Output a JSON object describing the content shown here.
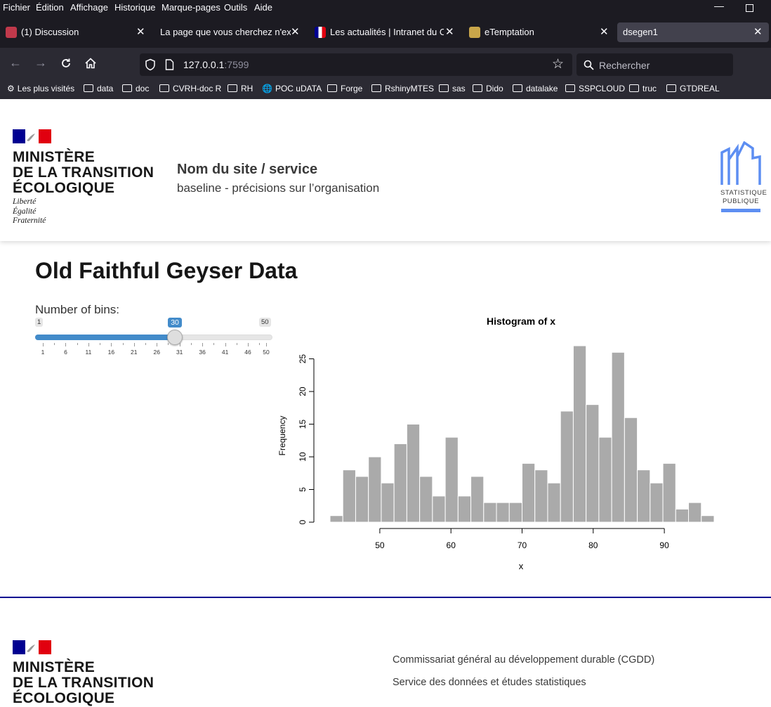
{
  "browser": {
    "menu": [
      "Fichier",
      "Édition",
      "Affichage",
      "Historique",
      "Marque-pages",
      "Outils",
      "Aide"
    ],
    "tabs": [
      {
        "title": "(1) Discussion",
        "active": false
      },
      {
        "title": "La page que vous cherchez n'existe",
        "active": false
      },
      {
        "title": "Les actualités | Intranet du CGD",
        "active": false
      },
      {
        "title": "eTemptation",
        "active": false
      },
      {
        "title": "dsegen1",
        "active": true
      }
    ],
    "url_host": "127.0.0.1",
    "url_port": ":7599",
    "search_placeholder": "Rechercher",
    "bookmarks": [
      "Les plus visités",
      "data",
      "doc",
      "CVRH-doc R",
      "RH",
      "POC uDATA",
      "Forge",
      "RshinyMTES",
      "sas",
      "Dido",
      "datalake",
      "SSPCLOUD",
      "truc",
      "GTDREAL"
    ]
  },
  "header": {
    "ministry_lines": [
      "MINISTÈRE",
      "DE LA TRANSITION",
      "ÉCOLOGIQUE"
    ],
    "devise": [
      "Liberté",
      "Égalité",
      "Fraternité"
    ],
    "site_name": "Nom du site / service",
    "baseline": "baseline - précisions sur l’organisation",
    "sp_logo_lines": [
      "STATISTIQUE",
      "PUBLIQUE"
    ]
  },
  "main": {
    "title": "Old Faithful Geyser Data",
    "slider": {
      "label": "Number of bins:",
      "min": 1,
      "max": 50,
      "value": 30,
      "min_label": "1",
      "max_label": "50",
      "value_label": "30",
      "tick_labels": [
        "1",
        "6",
        "11",
        "16",
        "21",
        "26",
        "31",
        "36",
        "41",
        "46",
        "50"
      ]
    }
  },
  "chart_data": {
    "type": "bar",
    "title": "Histogram of x",
    "xlabel": "x",
    "ylabel": "Frequency",
    "bin_starts": [
      43,
      44.8,
      46.6,
      48.4,
      50.2,
      52,
      53.8,
      55.6,
      57.4,
      59.2,
      61,
      62.8,
      64.6,
      66.4,
      68.2,
      70,
      71.8,
      73.6,
      75.4,
      77.2,
      79,
      80.8,
      82.6,
      84.4,
      86.2,
      88,
      89.8,
      91.6,
      93.4,
      95.2
    ],
    "bin_width": 1.8,
    "values": [
      1,
      8,
      7,
      10,
      6,
      12,
      15,
      7,
      4,
      13,
      4,
      7,
      3,
      3,
      3,
      9,
      8,
      6,
      17,
      27,
      18,
      13,
      26,
      16,
      8,
      6,
      9,
      2,
      3,
      1
    ],
    "xticks": [
      50,
      60,
      70,
      80,
      90
    ],
    "yticks": [
      0,
      5,
      10,
      15,
      20,
      25
    ],
    "xlim": [
      43,
      97
    ],
    "ylim": [
      0,
      27
    ],
    "bar_color": "#aaaaaa"
  },
  "footer": {
    "ministry_lines": [
      "MINISTÈRE",
      "DE LA TRANSITION",
      "ÉCOLOGIQUE"
    ],
    "line1": "Commissariat général au développement durable (CGDD)",
    "line2": "Service des données et études statistiques"
  },
  "colors": {
    "chrome_dark": "#1c1b22",
    "chrome_mid": "#2b2a33",
    "slider_accent": "#428bca",
    "marianne_blue": "#000091",
    "marianne_red": "#e1000f",
    "sp_blue": "#5d8ef2"
  }
}
